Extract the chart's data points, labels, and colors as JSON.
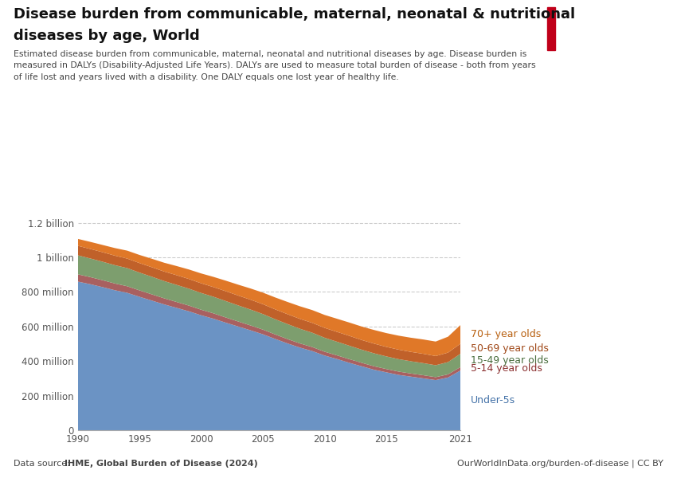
{
  "title_line1": "Disease burden from communicable, maternal, neonatal & nutritional",
  "title_line2": "diseases by age, World",
  "subtitle": "Estimated disease burden from communicable, maternal, neonatal and nutritional diseases by age. Disease burden is\nmeasured in DALYs (Disability-Adjusted Life Years). DALYs are used to measure total burden of disease - both from years\nof life lost and years lived with a disability. One DALY equals one lost year of healthy life.",
  "source_left": "Data source: ",
  "source_left_bold": "IHME, Global Burden of Disease (2024)",
  "source_right": "OurWorldInData.org/burden-of-disease | CC BY",
  "years": [
    1990,
    1991,
    1992,
    1993,
    1994,
    1995,
    1996,
    1997,
    1998,
    1999,
    2000,
    2001,
    2002,
    2003,
    2004,
    2005,
    2006,
    2007,
    2008,
    2009,
    2010,
    2011,
    2012,
    2013,
    2014,
    2015,
    2016,
    2017,
    2018,
    2019,
    2020,
    2021
  ],
  "under5": [
    860,
    845,
    828,
    810,
    795,
    772,
    750,
    728,
    708,
    688,
    665,
    645,
    622,
    600,
    578,
    555,
    528,
    502,
    478,
    458,
    432,
    412,
    390,
    370,
    350,
    335,
    320,
    310,
    300,
    290,
    305,
    345
  ],
  "age5_14": [
    42,
    41,
    40,
    39,
    38,
    37,
    36,
    35,
    34,
    33,
    32,
    31,
    30,
    29,
    28,
    27,
    26,
    25,
    24,
    23,
    22,
    21,
    21,
    20,
    20,
    19,
    19,
    18,
    18,
    17,
    18,
    20
  ],
  "age15_49": [
    110,
    108,
    107,
    106,
    105,
    103,
    102,
    100,
    99,
    98,
    97,
    96,
    95,
    93,
    92,
    90,
    88,
    87,
    85,
    83,
    81,
    79,
    78,
    76,
    75,
    73,
    72,
    71,
    70,
    69,
    71,
    77
  ],
  "age50_69": [
    55,
    55,
    55,
    55,
    55,
    55,
    55,
    55,
    56,
    56,
    56,
    56,
    57,
    57,
    57,
    57,
    57,
    57,
    57,
    57,
    57,
    57,
    57,
    56,
    56,
    55,
    55,
    54,
    54,
    53,
    55,
    58
  ],
  "age70plus": [
    40,
    41,
    42,
    44,
    46,
    47,
    49,
    51,
    53,
    55,
    57,
    59,
    61,
    63,
    65,
    67,
    69,
    71,
    73,
    74,
    75,
    76,
    77,
    78,
    79,
    80,
    81,
    82,
    83,
    84,
    92,
    108
  ],
  "colors": {
    "under5": "#6b93c4",
    "age5_14": "#a86060",
    "age15_49": "#7d9e6e",
    "age50_69": "#c0612a",
    "age70plus": "#e07828"
  },
  "labels": {
    "under5": "Under-5s",
    "age5_14": "5-14 year olds",
    "age15_49": "15-49 year olds",
    "age50_69": "50-69 year olds",
    "age70plus": "70+ year olds"
  },
  "label_colors": {
    "under5": "#4472a8",
    "age5_14": "#8b3030",
    "age15_49": "#4a6e3e",
    "age50_69": "#a04818",
    "age70plus": "#b86010"
  },
  "ylim": [
    0,
    1300000000
  ],
  "yticks": [
    0,
    200000000,
    400000000,
    600000000,
    800000000,
    1000000000,
    1200000000
  ],
  "ytick_labels": [
    "0",
    "200 million",
    "400 million",
    "600 million",
    "800 million",
    "1 billion",
    "1.2 billion"
  ],
  "background_color": "#ffffff"
}
